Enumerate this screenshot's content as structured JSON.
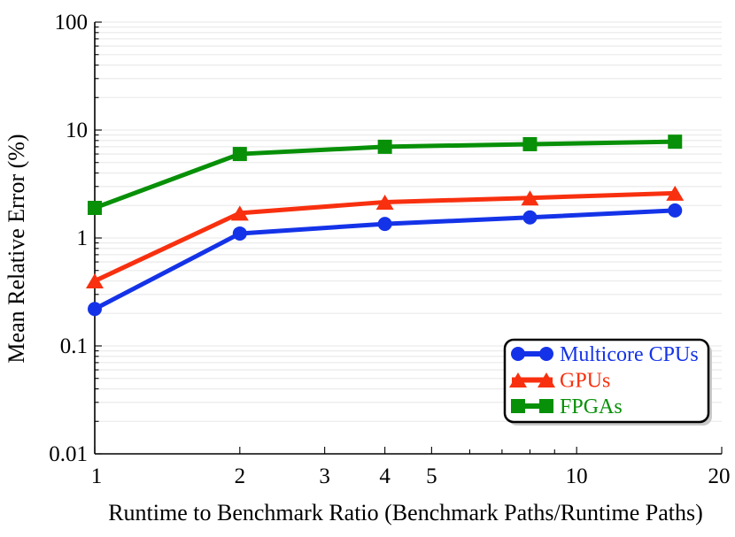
{
  "page": {
    "background": "#ffffff"
  },
  "chart_data": {
    "type": "line",
    "title": "",
    "xlabel": "Runtime to Benchmark Ratio (Benchmark Paths/Runtime Paths)",
    "ylabel": "Mean Relative Error (%)",
    "x_scale": "log",
    "y_scale": "log",
    "xlim": [
      1,
      20
    ],
    "ylim": [
      0.01,
      100
    ],
    "grid": "horizontal minor+major gridlines, light gray, no vertical gridlines",
    "legend_position": "bottom-right",
    "x_major_ticks": [
      1,
      2,
      3,
      4,
      5,
      10,
      20
    ],
    "x_minor_ticks": [
      6,
      7,
      8,
      9
    ],
    "x_tick_labels": [
      "1",
      "2",
      "3",
      "4",
      "5",
      "10",
      "20"
    ],
    "y_major_ticks": [
      100,
      10,
      1,
      0.1,
      0.01
    ],
    "y_tick_labels": [
      "100",
      "10",
      "1",
      "0.1",
      "0.01"
    ],
    "x": [
      1,
      2,
      4,
      8,
      16
    ],
    "series": [
      {
        "name": "Multicore CPUs",
        "color": "#1433e8",
        "marker": "circle",
        "values": [
          0.22,
          1.1,
          1.35,
          1.55,
          1.8
        ]
      },
      {
        "name": "GPUs",
        "color": "#f8300f",
        "marker": "triangle",
        "values": [
          0.4,
          1.7,
          2.15,
          2.35,
          2.6
        ]
      },
      {
        "name": "FPGAs",
        "color": "#089008",
        "marker": "square",
        "values": [
          1.9,
          6.0,
          7.0,
          7.4,
          7.8
        ]
      }
    ],
    "colors": {
      "grid": "#ececec",
      "axis": "#000000",
      "background": "#ffffff",
      "legend_border": "#000000",
      "legend_shadow": "#c9c9c9",
      "legend_fill": "#ffffff"
    }
  }
}
